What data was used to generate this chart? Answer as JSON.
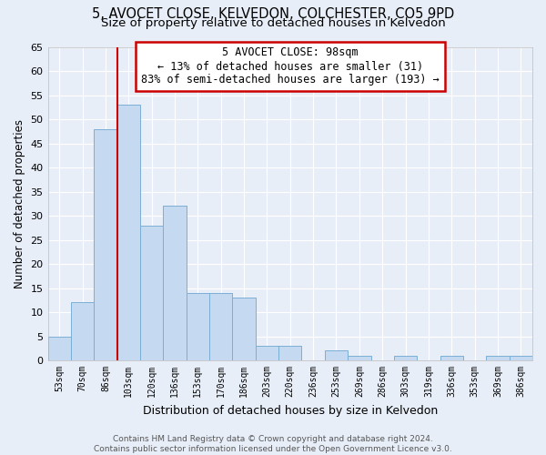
{
  "title1": "5, AVOCET CLOSE, KELVEDON, COLCHESTER, CO5 9PD",
  "title2": "Size of property relative to detached houses in Kelvedon",
  "xlabel": "Distribution of detached houses by size in Kelvedon",
  "ylabel": "Number of detached properties",
  "footer": "Contains HM Land Registry data © Crown copyright and database right 2024.\nContains public sector information licensed under the Open Government Licence v3.0.",
  "bins": [
    "53sqm",
    "70sqm",
    "86sqm",
    "103sqm",
    "120sqm",
    "136sqm",
    "153sqm",
    "170sqm",
    "186sqm",
    "203sqm",
    "220sqm",
    "236sqm",
    "253sqm",
    "269sqm",
    "286sqm",
    "303sqm",
    "319sqm",
    "336sqm",
    "353sqm",
    "369sqm",
    "386sqm"
  ],
  "values": [
    5,
    12,
    48,
    53,
    28,
    32,
    14,
    14,
    13,
    3,
    3,
    0,
    2,
    1,
    0,
    1,
    0,
    1,
    0,
    1,
    1
  ],
  "bar_color": "#c5d9f0",
  "bar_edge_color": "#7bafd4",
  "property_line_x": 3,
  "annotation_title": "5 AVOCET CLOSE: 98sqm",
  "annotation_line1": "← 13% of detached houses are smaller (31)",
  "annotation_line2": "83% of semi-detached houses are larger (193) →",
  "annotation_box_color": "#ffffff",
  "annotation_box_edge": "#cc0000",
  "line_color": "#cc0000",
  "ylim": [
    0,
    65
  ],
  "yticks": [
    0,
    5,
    10,
    15,
    20,
    25,
    30,
    35,
    40,
    45,
    50,
    55,
    60,
    65
  ],
  "background_color": "#e8eef8",
  "grid_color": "#ffffff",
  "title1_fontsize": 10.5,
  "title2_fontsize": 9.5,
  "xlabel_fontsize": 9,
  "ylabel_fontsize": 8.5,
  "annotation_fontsize": 8.5,
  "footer_fontsize": 6.5
}
